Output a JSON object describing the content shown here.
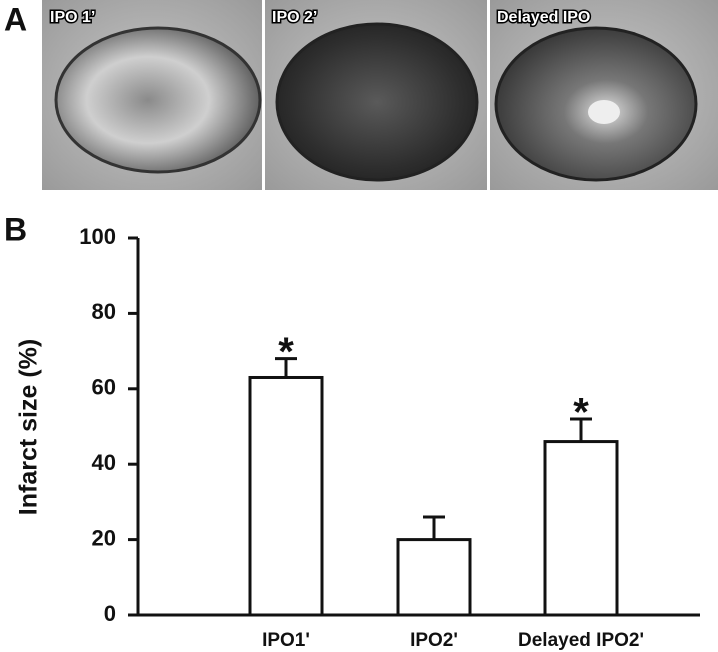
{
  "photos": {
    "panel_label": "A",
    "labels": [
      "IPO 1’",
      "IPO 2’",
      "Delayed IPO"
    ]
  },
  "chart_data": {
    "type": "bar",
    "panel_label": "B",
    "y_label": "Infarct size (%)",
    "categories": [
      "IPO1'",
      "IPO2'",
      "Delayed IPO2'"
    ],
    "values": [
      63,
      20,
      46
    ],
    "errors": [
      5,
      6,
      6
    ],
    "significance": [
      "*",
      null,
      "*"
    ],
    "color": "#ffffff",
    "ylim": [
      0,
      100
    ],
    "yticks": [
      0,
      20,
      40,
      60,
      80,
      100
    ]
  }
}
